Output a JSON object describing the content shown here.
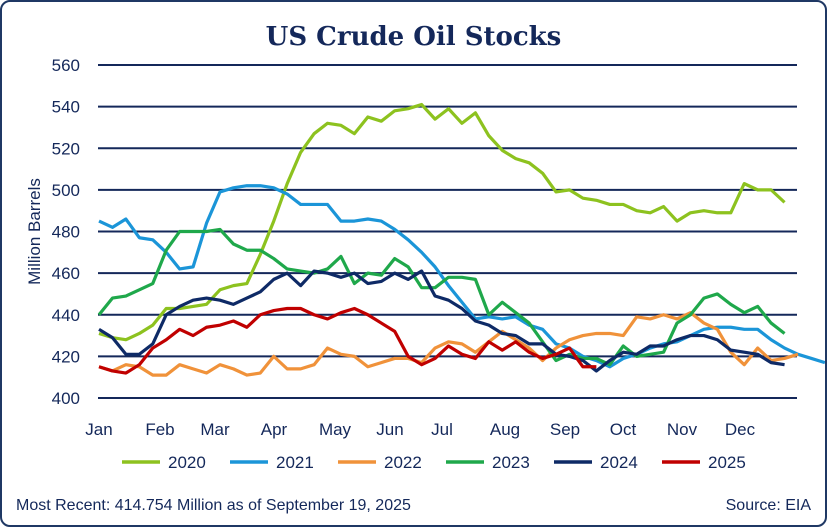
{
  "chart_data": {
    "type": "line",
    "title": "US Crude Oil Stocks",
    "ylabel": "Million Barrels",
    "xlabel": "",
    "ylim": [
      400,
      560
    ],
    "yticks": [
      400,
      420,
      440,
      460,
      480,
      500,
      520,
      540,
      560
    ],
    "x_tick_labels": [
      "Jan",
      "Feb",
      "Mar",
      "Apr",
      "May",
      "Jun",
      "Jul",
      "Aug",
      "Sep",
      "Oct",
      "Nov",
      "Dec"
    ],
    "x_unit": "weekly, starting January",
    "grid": true,
    "legend_position": "bottom",
    "series": [
      {
        "name": "2020",
        "color": "#8dc21f",
        "values": [
          431,
          429,
          428,
          431,
          435,
          443,
          443,
          444,
          445,
          452,
          454,
          455,
          469,
          485,
          503,
          518,
          527,
          532,
          531,
          527,
          535,
          533,
          538,
          539,
          541,
          534,
          539,
          532,
          537,
          526,
          519,
          515,
          513,
          508,
          499,
          500,
          496,
          495,
          493,
          493,
          490,
          489,
          492,
          485,
          489,
          490,
          489,
          489,
          503,
          500,
          500,
          494
        ]
      },
      {
        "name": "2021",
        "color": "#1b95d8",
        "values": [
          485,
          482,
          486,
          477,
          476,
          470,
          462,
          463,
          484,
          499,
          501,
          502,
          502,
          501,
          498,
          493,
          493,
          493,
          485,
          485,
          486,
          485,
          481,
          476,
          470,
          463,
          454,
          446,
          438,
          439,
          438,
          439,
          435,
          433,
          426,
          424,
          420,
          418,
          415,
          419,
          421,
          424,
          426,
          427,
          430,
          433,
          434,
          434,
          433,
          433,
          428,
          424,
          421,
          419,
          417
        ]
      },
      {
        "name": "2022",
        "color": "#f0923a",
        "values": [
          415,
          413,
          416,
          415,
          411,
          411,
          416,
          414,
          412,
          416,
          414,
          411,
          412,
          420,
          414,
          414,
          416,
          424,
          421,
          420,
          415,
          417,
          419,
          419,
          417,
          424,
          427,
          426,
          422,
          427,
          432,
          428,
          424,
          418,
          424,
          428,
          430,
          431,
          431,
          430,
          439,
          438,
          440,
          438,
          441,
          436,
          433,
          422,
          416,
          424,
          418,
          419,
          421
        ]
      },
      {
        "name": "2023",
        "color": "#1fa84b",
        "values": [
          440,
          448,
          449,
          452,
          455,
          471,
          480,
          480,
          480,
          481,
          474,
          471,
          471,
          467,
          462,
          461,
          460,
          462,
          468,
          455,
          460,
          459,
          467,
          463,
          453,
          453,
          458,
          458,
          457,
          440,
          446,
          441,
          436,
          427,
          418,
          421,
          419,
          419,
          416,
          425,
          420,
          421,
          422,
          436,
          440,
          448,
          450,
          445,
          441,
          444,
          436,
          431
        ]
      },
      {
        "name": "2024",
        "color": "#0e2a66",
        "values": [
          433,
          429,
          421,
          421,
          426,
          440,
          444,
          447,
          448,
          447,
          445,
          448,
          451,
          457,
          460,
          454,
          461,
          460,
          458,
          460,
          455,
          456,
          460,
          457,
          461,
          449,
          447,
          443,
          437,
          435,
          431,
          430,
          426,
          426,
          421,
          420,
          418,
          413,
          418,
          422,
          421,
          425,
          425,
          428,
          430,
          430,
          428,
          423,
          422,
          421,
          417,
          416
        ]
      },
      {
        "name": "2025",
        "color": "#c00000",
        "values": [
          415,
          413,
          412,
          416,
          424,
          428,
          433,
          430,
          434,
          435,
          437,
          434,
          440,
          442,
          443,
          443,
          440,
          438,
          441,
          443,
          440,
          436,
          432,
          420,
          416,
          419,
          425,
          421,
          419,
          427,
          423,
          427,
          422,
          419,
          421,
          424,
          415,
          415
        ]
      }
    ]
  },
  "footer": {
    "note": "Most Recent: 414.754 Million as of September 19, 2025",
    "source": "Source: EIA"
  }
}
